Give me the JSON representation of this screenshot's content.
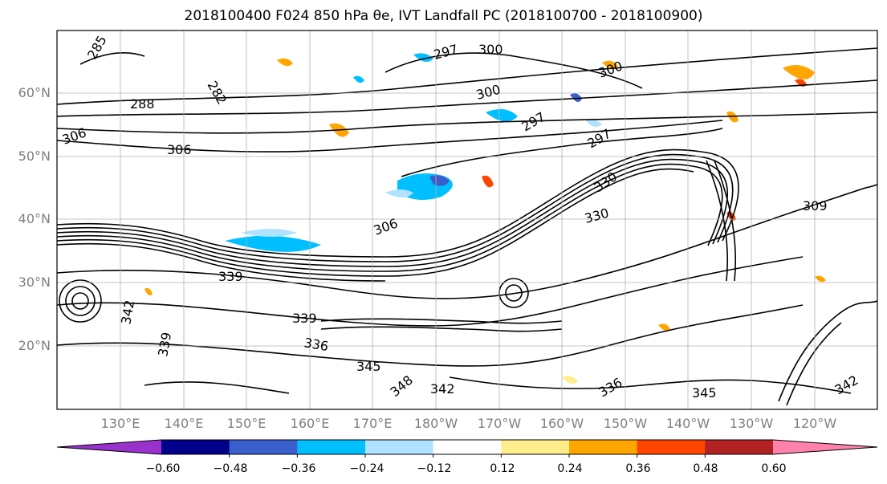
{
  "title": "2018100400 F024 850 hPa θe, IVT Landfall PC (2018100700 - 2018100900)",
  "map": {
    "projection": "PlateCarree",
    "extent_lon": [
      120,
      250
    ],
    "extent_lat": [
      10,
      70
    ],
    "grid": true,
    "lat_labels": [
      "60°N",
      "50°N",
      "40°N",
      "30°N",
      "20°N"
    ],
    "lon_labels": [
      "130°E",
      "140°E",
      "150°E",
      "160°E",
      "170°E",
      "180°W",
      "170°W",
      "160°W",
      "150°W",
      "140°W",
      "130°W",
      "120°W"
    ],
    "contour_variable": "850 hPa θe (K)",
    "contour_labels": [
      "285",
      "282",
      "288",
      "306",
      "306",
      "300",
      "297",
      "300",
      "300",
      "297",
      "297",
      "306",
      "330",
      "330",
      "309",
      "339",
      "342",
      "339",
      "339",
      "336",
      "345",
      "348",
      "342",
      "345",
      "342",
      "336"
    ],
    "fill_variable": "IVT Landfall PC"
  },
  "colorbar": {
    "ticks": [
      "−0.60",
      "−0.48",
      "−0.36",
      "−0.24",
      "−0.12",
      "0.12",
      "0.24",
      "0.36",
      "0.48",
      "0.60"
    ],
    "colors": [
      "#9932cc",
      "#00008b",
      "#3a5fcd",
      "#00bfff",
      "#b0e2ff",
      "#ffffff",
      "#ffec8b",
      "#ffa500",
      "#ff4500",
      "#b22222",
      "#ff82ab"
    ],
    "extend": "both"
  }
}
